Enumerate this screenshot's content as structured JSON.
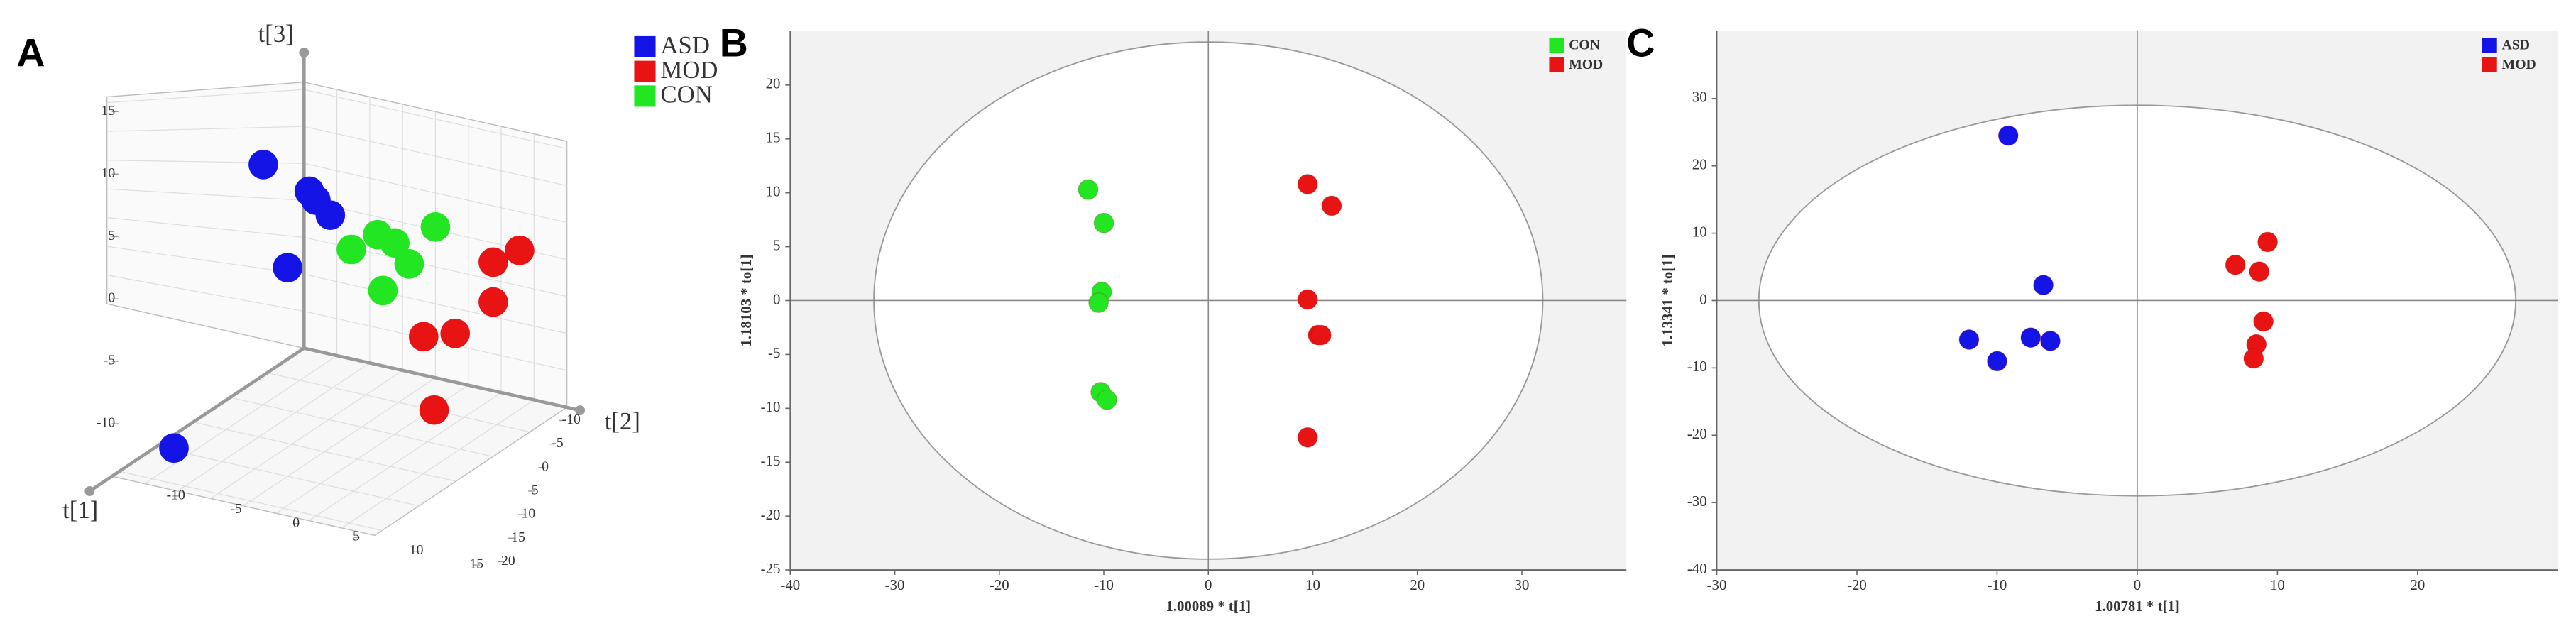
{
  "chart_data": [
    {
      "type": "scatter3d",
      "panel_label": "A",
      "x_label": "t[1]",
      "y_label": "t[2]",
      "z_label": "t[3]",
      "xticks": [
        -10,
        -5,
        0,
        5,
        10,
        15,
        20
      ],
      "yticks": [
        -10,
        -5,
        0,
        5,
        10,
        15
      ],
      "zticks": [
        -10,
        -5,
        0,
        5,
        10,
        15
      ],
      "series": [
        {
          "name": "ASD",
          "color": "#1414e6",
          "x": [
            0,
            0,
            0,
            0,
            0,
            8
          ],
          "y": [
            -3.1,
            0.4,
            0.9,
            2,
            -1.25,
            -0.9
          ],
          "z": [
            11.8,
            10.7,
            10.2,
            9.4,
            5.2,
            -1.6
          ]
        },
        {
          "name": "MOD",
          "color": "#e81414",
          "x": [
            0,
            0,
            0,
            0,
            0,
            0
          ],
          "y": [
            14.4,
            16.4,
            14.4,
            9.1,
            11.5,
            9.9
          ],
          "z": [
            8.7,
            9.9,
            6.0,
            2.6,
            3.3,
            -2.2
          ]
        },
        {
          "name": "CON",
          "color": "#22e622",
          "x": [
            0,
            0,
            0,
            0,
            0,
            0
          ],
          "y": [
            3.6,
            5.6,
            6.9,
            10,
            8,
            6
          ],
          "z": [
            7.4,
            8.8,
            8.5,
            10.2,
            7.3,
            5.1
          ]
        }
      ]
    },
    {
      "type": "scatter",
      "panel_label": "B",
      "x_label": "1.00089 * t[1]",
      "y_label": "1.18103 * to[1]",
      "xlim": [
        -40,
        40
      ],
      "ylim": [
        -25,
        25
      ],
      "xticks": [
        -40,
        -30,
        -20,
        -10,
        0,
        10,
        20,
        30
      ],
      "yticks": [
        -25,
        -20,
        -15,
        -10,
        -5,
        0,
        5,
        10,
        15,
        20
      ],
      "ellipse_radii": [
        32,
        24
      ],
      "series": [
        {
          "name": "CON",
          "color": "#22e622",
          "x": [
            -11.5,
            -10,
            -10.2,
            -10.5,
            -10.3,
            -9.7
          ],
          "values": [
            10.3,
            7.2,
            0.8,
            -0.2,
            -8.5,
            -9.2
          ]
        },
        {
          "name": "MOD",
          "color": "#e81414",
          "x": [
            9.5,
            11.8,
            9.5,
            10.5,
            10.8,
            9.5
          ],
          "values": [
            10.8,
            8.8,
            0.1,
            -3.2,
            -3.2,
            -12.7
          ]
        }
      ]
    },
    {
      "type": "scatter",
      "panel_label": "C",
      "x_label": "1.00781 * t[1]",
      "y_label": "1.13341 * to[1]",
      "xlim": [
        -30,
        30
      ],
      "ylim": [
        -40,
        40
      ],
      "xticks": [
        -30,
        -20,
        -10,
        0,
        10,
        20
      ],
      "yticks": [
        -40,
        -30,
        -20,
        -10,
        0,
        10,
        20,
        30
      ],
      "ellipse_radii": [
        27,
        29
      ],
      "series": [
        {
          "name": "ASD",
          "color": "#1414e6",
          "x": [
            -9.2,
            -6.7,
            -12,
            -10,
            -7.6,
            -6.2
          ],
          "values": [
            24.5,
            2.3,
            -5.8,
            -9,
            -5.5,
            -6
          ]
        },
        {
          "name": "MOD",
          "color": "#e81414",
          "x": [
            7,
            8.7,
            9.3,
            9,
            8.5,
            8.3
          ],
          "values": [
            5.3,
            4.3,
            8.7,
            -3.1,
            -6.5,
            -8.6
          ]
        }
      ]
    }
  ]
}
